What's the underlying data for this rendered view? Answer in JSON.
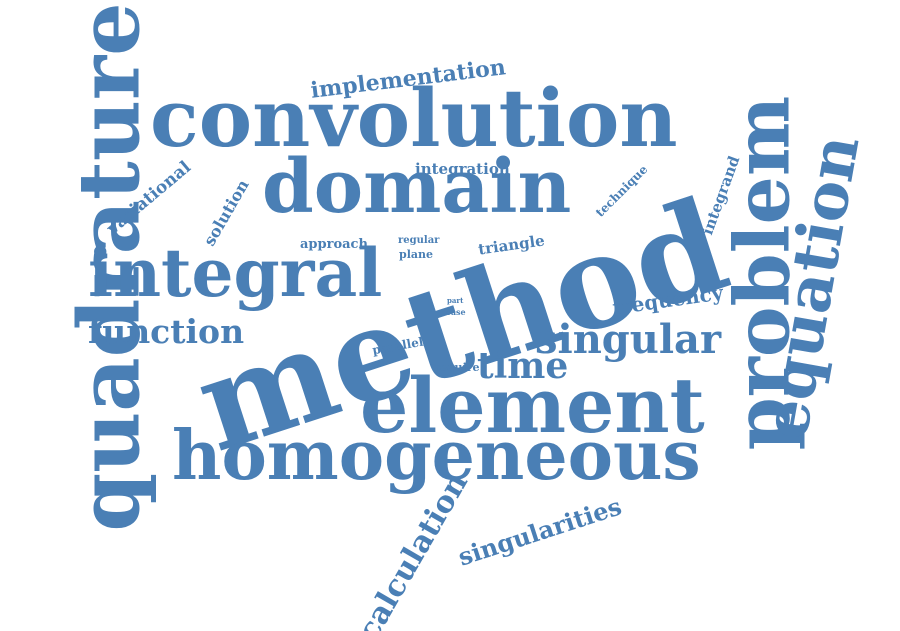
{
  "words": {
    "method": "method",
    "convolution": "convolution",
    "domain": "domain",
    "integral": "integral",
    "element": "element",
    "homogeneous": "homogeneous",
    "quadrature": "quadrature",
    "problem": "problem",
    "equation": "equation",
    "singular": "singular",
    "function": "function",
    "implementation": "implementation",
    "time": "time",
    "calculation": "calculation",
    "singularities": "singularities",
    "frequency": "frequency",
    "variational": "variational",
    "solution": "solution",
    "integration": "integration",
    "technique": "technique",
    "integrand": "integrand",
    "approach": "approach",
    "regular": "regular",
    "plane": "plane",
    "triangle": "triangle",
    "parallel": "parallel",
    "require": "require",
    "part": "part",
    "case": "case"
  },
  "colors": {
    "word": "#4a7fb5",
    "background": "#ffffff"
  }
}
